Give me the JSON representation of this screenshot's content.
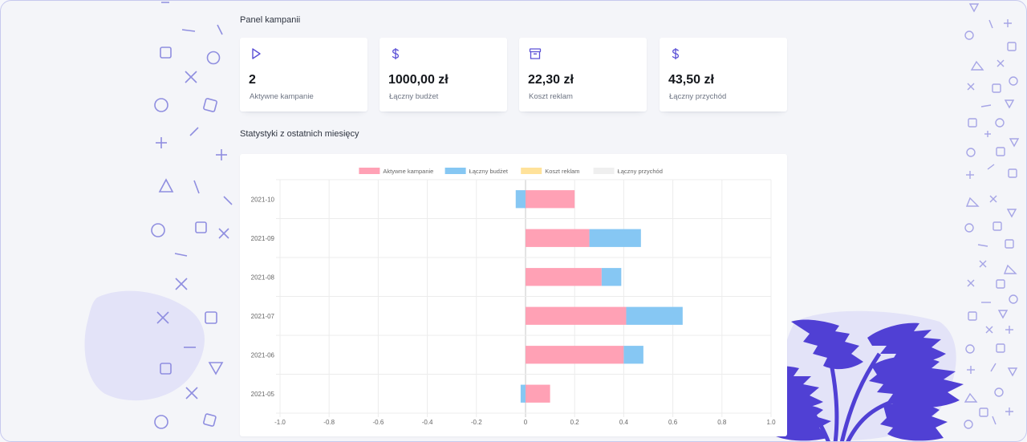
{
  "panel": {
    "title": "Panel kampanii",
    "cards": [
      {
        "icon": "play-icon",
        "value": "2",
        "label": "Aktywne kampanie"
      },
      {
        "icon": "dollar-icon",
        "value": "1000,00 zł",
        "label": "Łączny budżet"
      },
      {
        "icon": "archive-icon",
        "value": "22,30 zł",
        "label": "Koszt reklam"
      },
      {
        "icon": "dollar-icon",
        "value": "43,50 zł",
        "label": "Łączny przychód"
      }
    ]
  },
  "stats": {
    "title": "Statystyki z ostatnich miesięcy"
  },
  "colors": {
    "aktywne": "#ffa1b5",
    "budzet": "#86c7f3",
    "koszt": "#ffe29a",
    "przychod": "#efefef",
    "accent": "#5b50d6"
  },
  "chart_data": {
    "type": "bar",
    "orientation": "horizontal",
    "stacked": true,
    "categories": [
      "2021-10",
      "2021-09",
      "2021-08",
      "2021-07",
      "2021-06",
      "2021-05"
    ],
    "series": [
      {
        "name": "Aktywne kampanie",
        "values": [
          0.2,
          0.26,
          0.31,
          0.41,
          0.4,
          0.1
        ]
      },
      {
        "name": "Łączny budżet",
        "values": [
          -0.04,
          0.21,
          0.08,
          0.23,
          0.08,
          -0.02
        ]
      },
      {
        "name": "Koszt reklam",
        "values": [
          0,
          0,
          0,
          0,
          0,
          0
        ]
      },
      {
        "name": "Łączny przychód",
        "values": [
          0,
          0,
          0,
          0,
          0,
          0
        ]
      }
    ],
    "xlim": [
      -1.0,
      1.0
    ],
    "xticks": [
      "-1.0",
      "-0.8",
      "-0.6",
      "-0.4",
      "-0.2",
      "0",
      "0.2",
      "0.4",
      "0.6",
      "0.8",
      "1.0"
    ],
    "legend": "top",
    "grid": true
  }
}
